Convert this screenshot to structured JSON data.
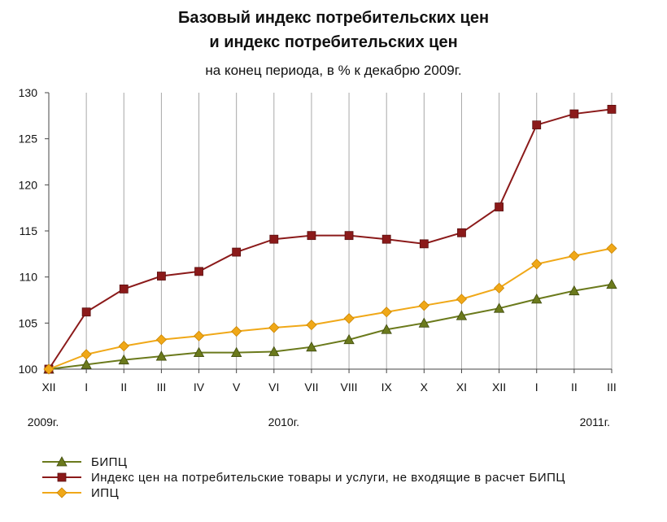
{
  "chart_data": {
    "type": "line",
    "title_line1": "Базовый индекс потребительских цен",
    "title_line2": "и индекс потребительских цен",
    "subtitle": "на конец периода, в % к декабрю 2009г.",
    "categories": [
      "XII",
      "I",
      "II",
      "III",
      "IV",
      "V",
      "VI",
      "VII",
      "VIII",
      "IX",
      "X",
      "XI",
      "XII",
      "I",
      "II",
      "III"
    ],
    "year_labels": [
      "2009г.",
      "2010г.",
      "2011г."
    ],
    "ylim": [
      100,
      130
    ],
    "yticks": [
      100,
      105,
      110,
      115,
      120,
      125,
      130
    ],
    "grid": "vertical",
    "legend_position": "bottom",
    "series": [
      {
        "name": "БИПЦ",
        "color": "#6b7a1c",
        "marker": "triangle",
        "values": [
          100,
          100.5,
          101.0,
          101.4,
          101.8,
          101.8,
          101.9,
          102.4,
          103.2,
          104.3,
          105.0,
          105.8,
          106.6,
          107.6,
          108.5,
          109.2
        ]
      },
      {
        "name": "Индекс цен на потребительские товары и услуги, не входящие в расчет БИПЦ",
        "color": "#8b1a1a",
        "marker": "square",
        "values": [
          100,
          106.2,
          108.7,
          110.1,
          110.6,
          112.7,
          114.1,
          114.5,
          114.5,
          114.1,
          113.6,
          114.8,
          117.6,
          126.5,
          127.7,
          128.2
        ]
      },
      {
        "name": "ИПЦ",
        "color": "#f0a818",
        "marker": "diamond",
        "values": [
          100,
          101.6,
          102.5,
          103.2,
          103.6,
          104.1,
          104.5,
          104.8,
          105.5,
          106.2,
          106.9,
          107.6,
          108.8,
          111.4,
          112.3,
          113.1
        ]
      }
    ]
  }
}
